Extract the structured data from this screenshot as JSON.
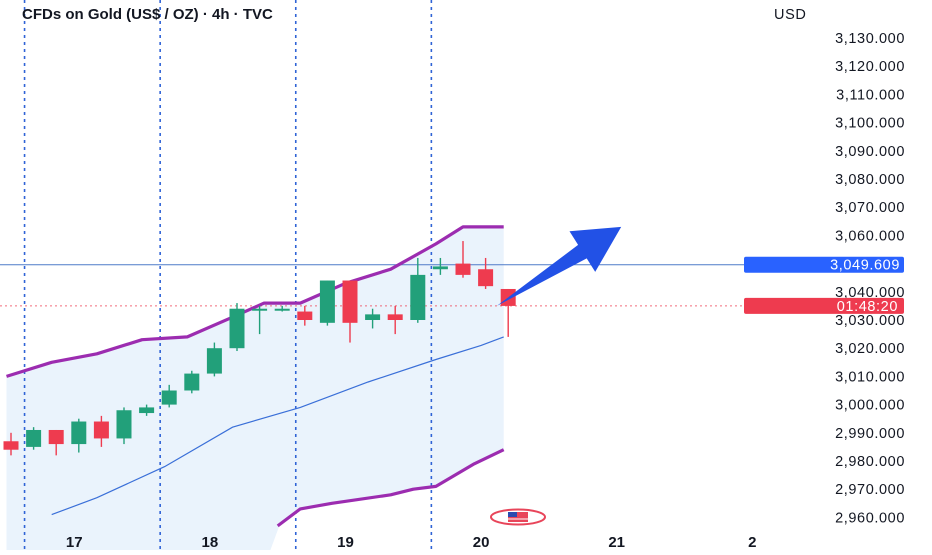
{
  "chart_data": {
    "type": "candlestick",
    "title": "CFDs on Gold (US$ / OZ) · 4h · TVC",
    "currency": "USD",
    "ylim": [
      2957,
      3138
    ],
    "y_ticks": [
      {
        "value": 3130,
        "label": "3,130.000"
      },
      {
        "value": 3120,
        "label": "3,120.000"
      },
      {
        "value": 3110,
        "label": "3,110.000"
      },
      {
        "value": 3100,
        "label": "3,100.000"
      },
      {
        "value": 3090,
        "label": "3,090.000"
      },
      {
        "value": 3080,
        "label": "3,080.000"
      },
      {
        "value": 3070,
        "label": "3,070.000"
      },
      {
        "value": 3060,
        "label": "3,060.000"
      },
      {
        "value": 3040,
        "label": "3,040.000"
      },
      {
        "value": 3030,
        "label": "3,030.000"
      },
      {
        "value": 3020,
        "label": "3,020.000"
      },
      {
        "value": 3010,
        "label": "3,010.000"
      },
      {
        "value": 3000,
        "label": "3,000.000"
      },
      {
        "value": 2990,
        "label": "2,990.000"
      },
      {
        "value": 2980,
        "label": "2,980.000"
      },
      {
        "value": 2970,
        "label": "2,970.000"
      },
      {
        "value": 2960,
        "label": "2,960.000"
      }
    ],
    "x_labels": [
      {
        "i": 2.8,
        "label": "17"
      },
      {
        "i": 8.8,
        "label": "18"
      },
      {
        "i": 14.8,
        "label": "19"
      },
      {
        "i": 20.8,
        "label": "20"
      },
      {
        "i": 26.8,
        "label": "21"
      },
      {
        "i": 32.8,
        "label": "2"
      }
    ],
    "session_lines_at": [
      0.6,
      6.6,
      12.6,
      18.6
    ],
    "candles": [
      {
        "o": 2987,
        "h": 2990,
        "l": 2982,
        "c": 2984
      },
      {
        "o": 2985,
        "h": 2992,
        "l": 2984,
        "c": 2991
      },
      {
        "o": 2991,
        "h": 2991,
        "l": 2982,
        "c": 2986
      },
      {
        "o": 2986,
        "h": 2995,
        "l": 2983,
        "c": 2994
      },
      {
        "o": 2994,
        "h": 2996,
        "l": 2985,
        "c": 2988
      },
      {
        "o": 2988,
        "h": 2999,
        "l": 2986,
        "c": 2998
      },
      {
        "o": 2997,
        "h": 3000,
        "l": 2996,
        "c": 2999
      },
      {
        "o": 3000,
        "h": 3007,
        "l": 2999,
        "c": 3005
      },
      {
        "o": 3005,
        "h": 3012,
        "l": 3004,
        "c": 3011
      },
      {
        "o": 3011,
        "h": 3022,
        "l": 3010,
        "c": 3020
      },
      {
        "o": 3020,
        "h": 3036,
        "l": 3019,
        "c": 3034
      },
      {
        "o": 3034,
        "h": 3035,
        "l": 3025,
        "c": 3034
      },
      {
        "o": 3034,
        "h": 3035,
        "l": 3033,
        "c": 3034
      },
      {
        "o": 3033,
        "h": 3035,
        "l": 3028,
        "c": 3030
      },
      {
        "o": 3029,
        "h": 3044,
        "l": 3028,
        "c": 3044
      },
      {
        "o": 3044,
        "h": 3044,
        "l": 3022,
        "c": 3029
      },
      {
        "o": 3030,
        "h": 3034,
        "l": 3027,
        "c": 3032
      },
      {
        "o": 3032,
        "h": 3035,
        "l": 3025,
        "c": 3030
      },
      {
        "o": 3030,
        "h": 3052,
        "l": 3029,
        "c": 3046
      },
      {
        "o": 3048,
        "h": 3052,
        "l": 3046,
        "c": 3049
      },
      {
        "o": 3050,
        "h": 3058,
        "l": 3045,
        "c": 3046
      },
      {
        "o": 3048,
        "h": 3052,
        "l": 3041,
        "c": 3042
      },
      {
        "o": 3041,
        "h": 3041,
        "l": 3024,
        "c": 3035
      }
    ],
    "band_upper": [
      {
        "i": -0.2,
        "v": 3010
      },
      {
        "i": 1.8,
        "v": 3015
      },
      {
        "i": 3.8,
        "v": 3018
      },
      {
        "i": 5.8,
        "v": 3023
      },
      {
        "i": 7.8,
        "v": 3024
      },
      {
        "i": 9.8,
        "v": 3031
      },
      {
        "i": 11.2,
        "v": 3036
      },
      {
        "i": 12.8,
        "v": 3036
      },
      {
        "i": 14.8,
        "v": 3043
      },
      {
        "i": 16.8,
        "v": 3048
      },
      {
        "i": 18.8,
        "v": 3057
      },
      {
        "i": 20.0,
        "v": 3063
      },
      {
        "i": 21.8,
        "v": 3063
      }
    ],
    "band_middle": [
      {
        "i": 1.8,
        "v": 2961
      },
      {
        "i": 3.8,
        "v": 2967
      },
      {
        "i": 6.8,
        "v": 2978
      },
      {
        "i": 9.8,
        "v": 2992
      },
      {
        "i": 12.8,
        "v": 2999
      },
      {
        "i": 15.8,
        "v": 3008
      },
      {
        "i": 18.8,
        "v": 3016
      },
      {
        "i": 20.8,
        "v": 3021
      },
      {
        "i": 21.8,
        "v": 3024
      }
    ],
    "band_lower": [
      {
        "i": 11.8,
        "v": 2957
      },
      {
        "i": 12.8,
        "v": 2963
      },
      {
        "i": 14.2,
        "v": 2965
      },
      {
        "i": 16.8,
        "v": 2968
      },
      {
        "i": 17.8,
        "v": 2970
      },
      {
        "i": 18.8,
        "v": 2971
      },
      {
        "i": 20.5,
        "v": 2979
      },
      {
        "i": 21.8,
        "v": 2984
      }
    ],
    "band_fill_from_i": -0.2,
    "band_fill_to_i": 21.8,
    "horizontal_line": {
      "value": 3049.609,
      "label": "3,049.609"
    },
    "current_price": {
      "value": 3035,
      "countdown": "01:48:20"
    },
    "arrow": {
      "from_i": 21.5,
      "from_v": 3035,
      "to_i": 27.0,
      "to_v": 3063
    },
    "colors": {
      "bull": "#22a07a",
      "bear": "#ee3b4f",
      "band_outer": "#9c2cb0",
      "band_middle": "#3a6fd8",
      "band_fill": "#eaf3fc",
      "horizontal_line": "#4f7bc8",
      "price_tag": "#2962ff",
      "countdown_tag": "#ee3b4f",
      "arrow": "#2251e6",
      "session_line": "#2f63d6"
    }
  }
}
